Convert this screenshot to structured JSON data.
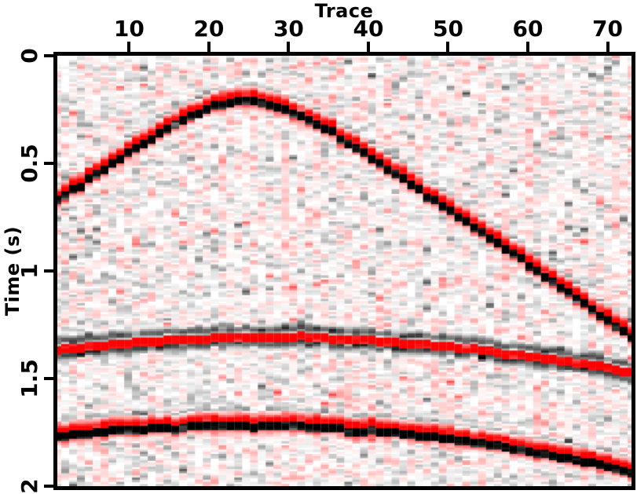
{
  "figure": {
    "kind": "seismic-shot-gather-image",
    "background_color": "#ffffff",
    "axis_color": "#000000"
  },
  "chart_data": {
    "type": "heatmap",
    "title": "",
    "xlabel": "Trace",
    "ylabel": "Time (s)",
    "x_range": [
      1,
      74
    ],
    "y_range": [
      0,
      2
    ],
    "x_ticks": [
      {
        "label": "10",
        "value": 10
      },
      {
        "label": "20",
        "value": 20
      },
      {
        "label": "30",
        "value": 30
      },
      {
        "label": "40",
        "value": 40
      },
      {
        "label": "50",
        "value": 50
      },
      {
        "label": "60",
        "value": 60
      },
      {
        "label": "70",
        "value": 70
      }
    ],
    "y_ticks": [
      {
        "label": "0",
        "value": 0
      },
      {
        "label": "0.5",
        "value": 0.5
      },
      {
        "label": "1",
        "value": 1
      },
      {
        "label": "1.5",
        "value": 1.5
      },
      {
        "label": "2",
        "value": 2
      }
    ],
    "grid": false,
    "legend": false,
    "n_traces": 74,
    "n_samples": 200,
    "dt_s": 0.01,
    "colormap": {
      "positive": "#ff0000",
      "negative": "#000000",
      "zero": "#ffffff"
    },
    "events": [
      {
        "name": "steep-hyperbolic-event",
        "description": "strong hyperbola, black main lobe with red side lobes, apex near trace 25 at 0.19 s, reaching ~0.63 s at trace 1 and ~1.28 s at right edge",
        "apex_trace": 25,
        "apex_time_s": 0.19,
        "moveout_s_per_trace": 0.026,
        "wavelet": "black_main",
        "amplitude": 1.0
      },
      {
        "name": "flat-reflection-1",
        "description": "nearly flat reflection, bright red main lobe with dark side lobes, ~1.29 s at apex trace 28, ~1.33 s at left edge, ~1.46 s at right edge",
        "apex_trace": 28,
        "apex_time_s": 1.29,
        "moveout_s_per_trace": 0.0145,
        "wavelet": "red_main",
        "amplitude": 1.0
      },
      {
        "name": "flat-reflection-2",
        "description": "gently curved reflection, black main lobe with red side lobes, ~1.70 s at apex trace 25, ~1.74 s at left edge, ~1.91 s at right edge",
        "apex_trace": 25,
        "apex_time_s": 1.7,
        "moveout_s_per_trace": 0.018,
        "wavelet": "black_main",
        "amplitude": 1.0
      }
    ],
    "wavelets": {
      "black_main": {
        "center_index": 7,
        "values": [
          -0.12,
          -0.2,
          0.18,
          0.4,
          0.75,
          1.0,
          0.95,
          -1.0,
          -1.0,
          -1.0,
          -0.85,
          0.45,
          0.22,
          0.1
        ]
      },
      "red_main": {
        "center_index": 5,
        "values": [
          -0.12,
          -0.3,
          -0.5,
          -0.55,
          -0.3,
          1.0,
          1.0,
          1.0,
          0.92,
          -0.65,
          -0.55,
          -0.3,
          -0.12
        ]
      }
    },
    "noise": {
      "seed": 20,
      "fine_amplitude": 0.38,
      "spike_probability": 0.022,
      "spike_amplitude": [
        0.3,
        0.8
      ],
      "pink_streak_probability": 0.2,
      "pink_streak_bias": 0.11,
      "appearance": "faint horizontal gray and pink speckle dashes over white background"
    }
  }
}
